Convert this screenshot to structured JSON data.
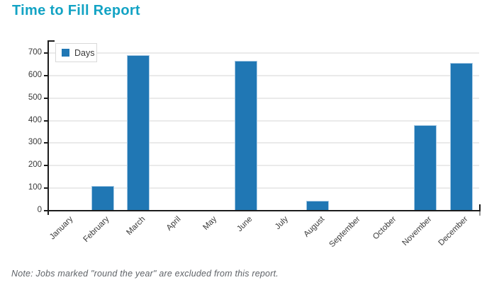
{
  "title": "Time to Fill Report",
  "legend": {
    "label": "Days"
  },
  "note": "Note: Jobs marked \"round the year\" are excluded from this report.",
  "colors": {
    "title": "#13a3c4",
    "bar": "#2077b4",
    "bar_edge": "#a9cbe5",
    "grid": "#eaeaea",
    "axis": "#1c1c1c",
    "axis_end_nub": "#9a9a9a",
    "tick_label": "#3a3a3a",
    "legend_border": "#d9d9d9",
    "note_text": "#5f6368"
  },
  "chart_data": {
    "type": "bar",
    "title": "Time to Fill Report",
    "categories": [
      "January",
      "February",
      "March",
      "April",
      "May",
      "June",
      "July",
      "August",
      "September",
      "October",
      "November",
      "December"
    ],
    "series": [
      {
        "name": "Days",
        "values": [
          0,
          110,
          690,
          0,
          0,
          665,
          0,
          45,
          0,
          0,
          380,
          655
        ]
      }
    ],
    "xlabel": "",
    "ylabel": "",
    "ylim": [
      0,
      700
    ],
    "ytick_step": 100,
    "yticks": [
      0,
      100,
      200,
      300,
      400,
      500,
      600,
      700
    ],
    "grid": true,
    "legend_position": "top-left",
    "note": "Note: Jobs marked \"round the year\" are excluded from this report."
  }
}
